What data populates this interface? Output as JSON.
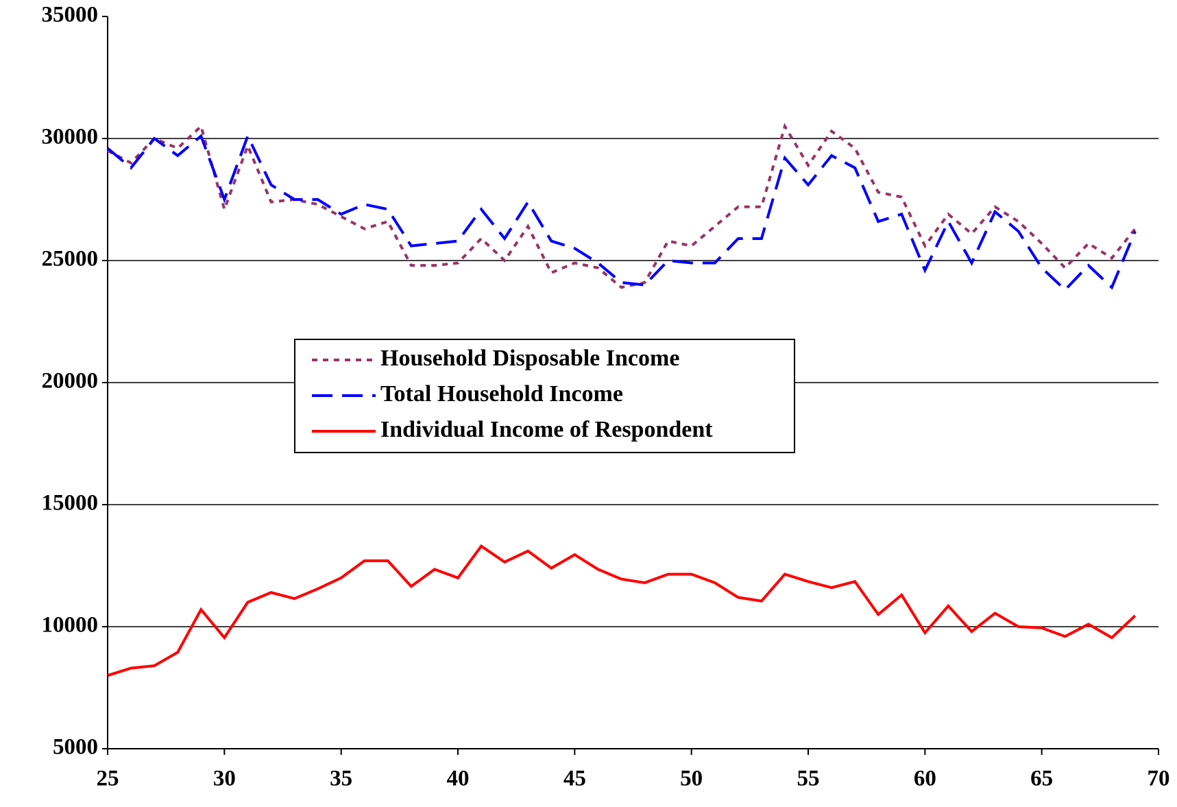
{
  "chart_data": {
    "type": "line",
    "x": [
      25,
      26,
      27,
      28,
      29,
      30,
      31,
      32,
      33,
      34,
      35,
      36,
      37,
      38,
      39,
      40,
      41,
      42,
      43,
      44,
      45,
      46,
      47,
      48,
      49,
      50,
      51,
      52,
      53,
      54,
      55,
      56,
      57,
      58,
      59,
      60,
      61,
      62,
      63,
      64,
      65,
      66,
      67,
      68,
      69
    ],
    "xlim": [
      25,
      70
    ],
    "xticks": [
      25,
      30,
      35,
      40,
      45,
      50,
      55,
      60,
      65,
      70
    ],
    "ylim": [
      5000,
      35000
    ],
    "yticks": [
      5000,
      10000,
      15000,
      20000,
      25000,
      30000,
      35000
    ],
    "grid": true,
    "series": [
      {
        "name": "Household Disposable Income",
        "color": "#993366",
        "line_style": "dotted",
        "values": [
          29500,
          29000,
          30000,
          29600,
          30500,
          27100,
          29700,
          27400,
          27500,
          27300,
          26800,
          26300,
          26600,
          24800,
          24800,
          24900,
          25900,
          25000,
          26400,
          24500,
          24900,
          24700,
          23900,
          24100,
          25800,
          25600,
          26400,
          27200,
          27200,
          30500,
          28900,
          30300,
          29600,
          27800,
          27600,
          25600,
          26900,
          26100,
          27200,
          26600,
          25700,
          24700,
          25700,
          25100,
          26300
        ]
      },
      {
        "name": "Total Household Income",
        "color": "#0000ff",
        "line_style": "dashed",
        "values": [
          29600,
          28800,
          30000,
          29300,
          30100,
          27500,
          30100,
          28100,
          27500,
          27500,
          26900,
          27300,
          27100,
          25600,
          25700,
          25800,
          27100,
          25900,
          27400,
          25800,
          25500,
          24900,
          24100,
          24000,
          25000,
          24900,
          24900,
          25900,
          25900,
          29200,
          28100,
          29300,
          28800,
          26600,
          26900,
          24600,
          26600,
          24900,
          27000,
          26200,
          24700,
          23800,
          24800,
          23900,
          26200
        ]
      },
      {
        "name": "Individual Income of Respondent",
        "color": "#ff0000",
        "line_style": "solid",
        "values": [
          8000,
          8300,
          8400,
          8950,
          10700,
          9550,
          11000,
          11400,
          11150,
          11550,
          12000,
          12700,
          12700,
          11650,
          12350,
          12000,
          13300,
          12650,
          13100,
          12400,
          12950,
          12350,
          11950,
          11800,
          12150,
          12150,
          11800,
          11200,
          11050,
          12150,
          11850,
          11600,
          11850,
          10500,
          11300,
          9750,
          10850,
          9800,
          10550,
          10000,
          9950,
          9600,
          10100,
          9550,
          10450
        ]
      }
    ]
  }
}
